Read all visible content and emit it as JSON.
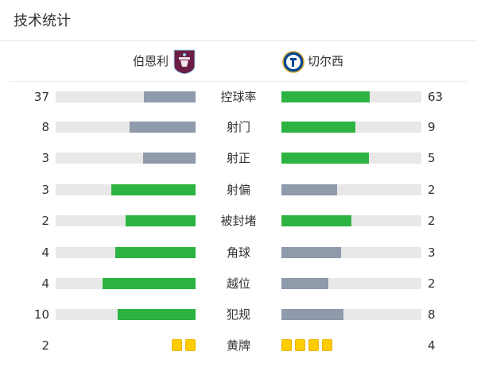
{
  "header": {
    "title": "技术统计"
  },
  "teams": {
    "home": {
      "name": "伯恩利",
      "logo": "burnley-crest-icon"
    },
    "away": {
      "name": "切尔西",
      "logo": "chelsea-crest-icon"
    }
  },
  "colors": {
    "leader": "#2db341",
    "trailer": "#8f9aab",
    "track": "#e8e8e8",
    "yellow_card": "#ffcc00"
  },
  "stats": [
    {
      "label": "控球率",
      "home": "37",
      "away": "63"
    },
    {
      "label": "射门",
      "home": "8",
      "away": "9"
    },
    {
      "label": "射正",
      "home": "3",
      "away": "5"
    },
    {
      "label": "射偏",
      "home": "3",
      "away": "2"
    },
    {
      "label": "被封堵",
      "home": "2",
      "away": "2"
    },
    {
      "label": "角球",
      "home": "4",
      "away": "3"
    },
    {
      "label": "越位",
      "home": "4",
      "away": "2"
    },
    {
      "label": "犯规",
      "home": "10",
      "away": "8"
    },
    {
      "label": "黄牌",
      "home": "2",
      "away": "4",
      "type": "cards"
    }
  ]
}
